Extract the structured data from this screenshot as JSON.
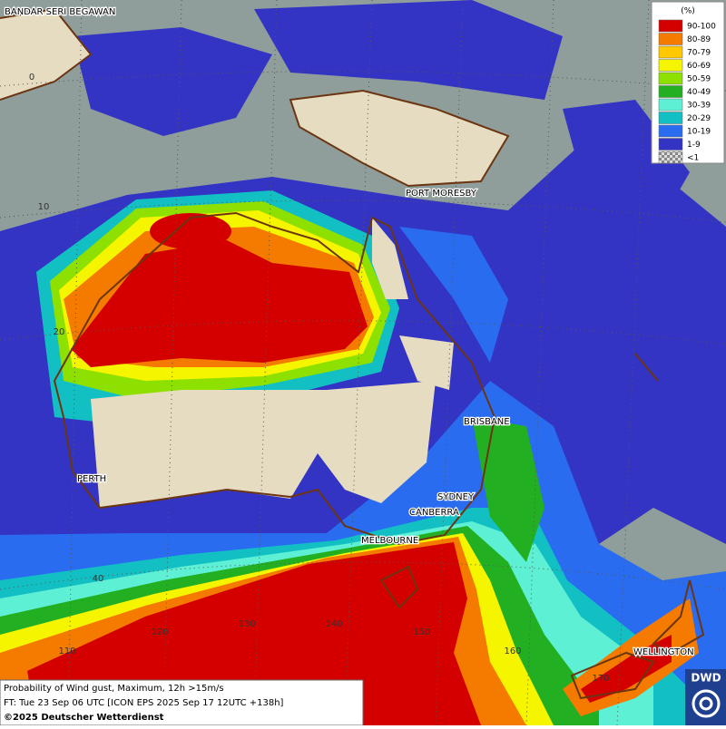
{
  "map": {
    "cities": [
      "BANDAR SERI BEGAWAN",
      "PORT MORESBY",
      "BRISBANE",
      "PERTH",
      "SYDNEY",
      "CANBERRA",
      "MELBOURNE",
      "WELLINGTON"
    ],
    "grid_labels": [
      "0",
      "10",
      "20",
      "40",
      "110",
      "120",
      "130",
      "140",
      "150",
      "160",
      "170"
    ]
  },
  "legend": {
    "title": "(%)",
    "entries": [
      {
        "label": "90-100",
        "color": "#d40000"
      },
      {
        "label": "80-89",
        "color": "#f57a00"
      },
      {
        "label": "70-79",
        "color": "#ffc800"
      },
      {
        "label": "60-69",
        "color": "#f5f500"
      },
      {
        "label": "50-59",
        "color": "#8ee000"
      },
      {
        "label": "40-49",
        "color": "#22b022"
      },
      {
        "label": "30-39",
        "color": "#5ef0d4"
      },
      {
        "label": "20-29",
        "color": "#12c0c4"
      },
      {
        "label": "10-19",
        "color": "#2a6cf0"
      },
      {
        "label": "1-9",
        "color": "#3434c4"
      },
      {
        "label": "<1",
        "color": "checker"
      }
    ]
  },
  "caption": {
    "line1": "Probability of Wind gust, Maximum, 12h >15m/s",
    "line2": "FT: Tue 23 Sep 06 UTC [ICON EPS 2025 Sep 17 12UTC +138h]",
    "line3": "©2025 Deutscher Wetterdienst"
  },
  "logo": "DWD"
}
